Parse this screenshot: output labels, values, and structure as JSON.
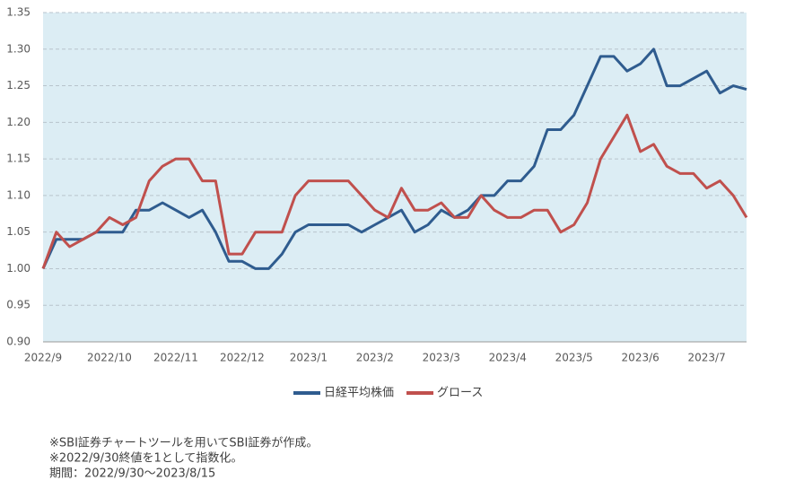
{
  "chart_data": {
    "type": "line",
    "categories": [
      "2022/9",
      null,
      null,
      null,
      null,
      "2022/10",
      null,
      null,
      null,
      null,
      "2022/11",
      null,
      null,
      null,
      null,
      "2022/12",
      null,
      null,
      null,
      null,
      "2023/1",
      null,
      null,
      null,
      null,
      "2023/2",
      null,
      null,
      null,
      null,
      "2023/3",
      null,
      null,
      null,
      null,
      "2023/4",
      null,
      null,
      null,
      null,
      "2023/5",
      null,
      null,
      null,
      null,
      "2023/6",
      null,
      null,
      null,
      null,
      "2023/7",
      null,
      null,
      null
    ],
    "series": [
      {
        "name": "日経平均株価",
        "color": "#2f5c8f",
        "values": [
          1.0,
          1.04,
          1.04,
          1.04,
          1.05,
          1.05,
          1.05,
          1.08,
          1.08,
          1.09,
          1.08,
          1.07,
          1.08,
          1.05,
          1.01,
          1.01,
          1.0,
          1.0,
          1.02,
          1.05,
          1.06,
          1.06,
          1.06,
          1.06,
          1.05,
          1.06,
          1.07,
          1.08,
          1.05,
          1.06,
          1.08,
          1.07,
          1.08,
          1.1,
          1.1,
          1.12,
          1.12,
          1.14,
          1.19,
          1.19,
          1.21,
          1.25,
          1.29,
          1.29,
          1.27,
          1.28,
          1.3,
          1.25,
          1.25,
          1.26,
          1.27,
          1.24,
          1.25,
          1.245
        ]
      },
      {
        "name": "グロース",
        "color": "#c0504d",
        "values": [
          1.0,
          1.05,
          1.03,
          1.04,
          1.05,
          1.07,
          1.06,
          1.07,
          1.12,
          1.14,
          1.15,
          1.15,
          1.12,
          1.12,
          1.02,
          1.02,
          1.05,
          1.05,
          1.05,
          1.1,
          1.12,
          1.12,
          1.12,
          1.12,
          1.1,
          1.08,
          1.07,
          1.11,
          1.08,
          1.08,
          1.09,
          1.07,
          1.07,
          1.1,
          1.08,
          1.07,
          1.07,
          1.08,
          1.08,
          1.05,
          1.06,
          1.09,
          1.15,
          1.18,
          1.21,
          1.16,
          1.17,
          1.14,
          1.13,
          1.13,
          1.11,
          1.12,
          1.1,
          1.07
        ]
      }
    ],
    "ylim": [
      0.9,
      1.35
    ],
    "yticks": [
      {
        "value": 0.9,
        "label": "0.90"
      },
      0.95,
      {
        "value": 1,
        "label": "1.00"
      },
      1.05,
      {
        "value": 1.1,
        "label": "1.10"
      },
      1.15,
      {
        "value": 1.2,
        "label": "1.20"
      },
      1.25,
      {
        "value": 1.3,
        "label": "1.30"
      },
      1.35
    ],
    "grid": true,
    "legend": "bottom",
    "notes": [
      "※SBI証券チャートツールを用いてSBI証券が作成。",
      "※2022/9/30終値を1として指数化。",
      "期間：2022/9/30～2023/8/15"
    ]
  }
}
